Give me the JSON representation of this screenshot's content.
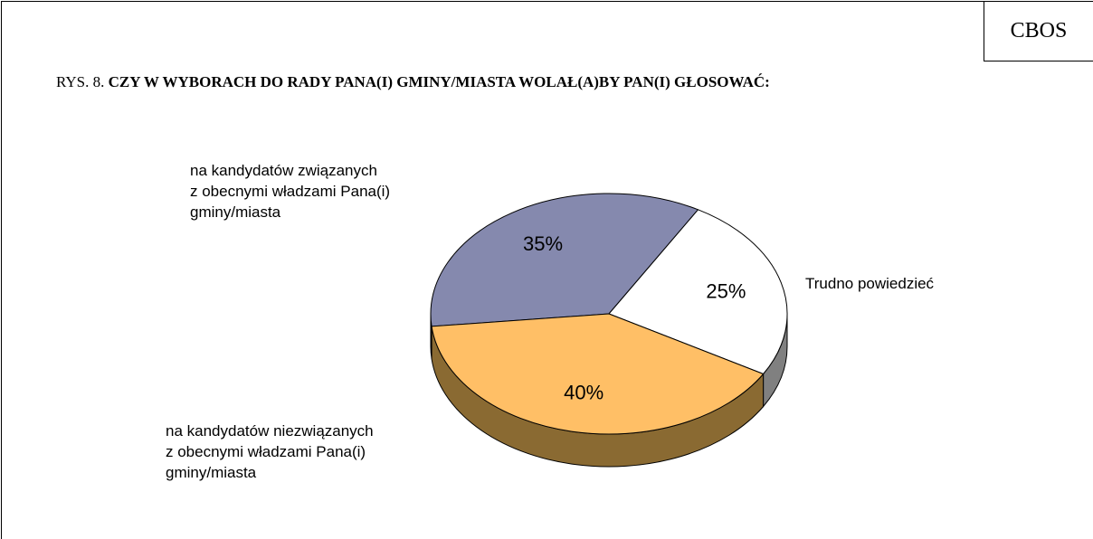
{
  "chart_data": {
    "type": "pie",
    "source": "CBOS",
    "figure_label": "RYS. 8.",
    "title": "CZY W WYBORACH DO RADY PANA(I) GMINY/MIASTA WOLAŁ(A)BY PAN(I) GŁOSOWAĆ:",
    "categories": [
      "na kandydatów związanych\nz obecnymi władzami Pana(i)\ngminy/miasta",
      "Trudno powiedzieć",
      "na kandydatów niezwiązanych\nz obecnymi władzami Pana(i)\ngminy/miasta"
    ],
    "values": [
      35,
      25,
      40
    ],
    "value_labels": [
      "35%",
      "25%",
      "40%"
    ],
    "colors": [
      "#8589ae",
      "#ffffff",
      "#ffbf66"
    ],
    "side_colors": [
      "#55587a",
      "#808080",
      "#8a6a32"
    ]
  }
}
